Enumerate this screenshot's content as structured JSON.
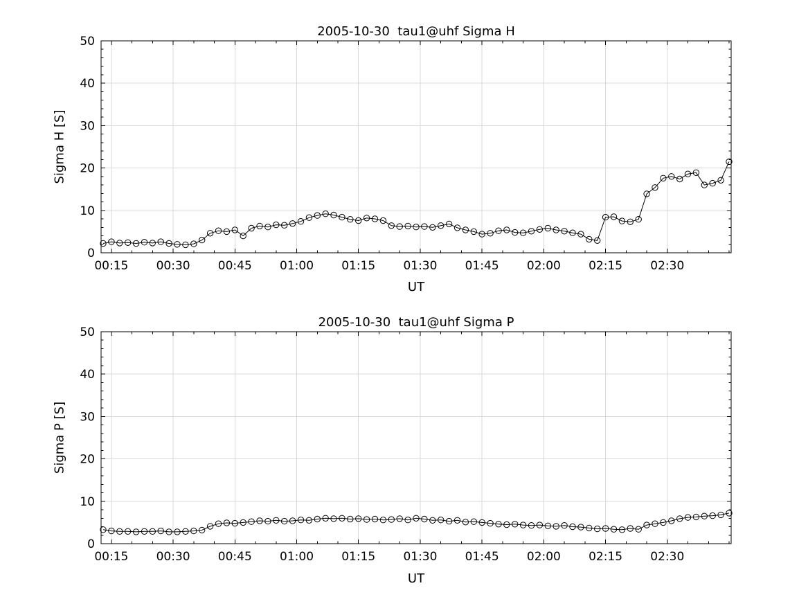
{
  "figure": {
    "background": "#ffffff",
    "axis_color": "#000000"
  },
  "chart_data": [
    {
      "type": "line",
      "title": "2005-10-30  tau1@uhf Sigma H",
      "xlabel": "UT",
      "ylabel": "Sigma H [S]",
      "marker": "circle",
      "line_color": "#000000",
      "grid": true,
      "grid_color": "#d9d9d9",
      "legend": "none",
      "ylim": [
        0,
        50
      ],
      "yticks": [
        0,
        10,
        20,
        30,
        40,
        50
      ],
      "y_minor_step": 2,
      "xlim_minutes": [
        12.5,
        165.5
      ],
      "x_minor_step_minutes": 5,
      "xticks_minutes": [
        15,
        30,
        45,
        60,
        75,
        90,
        105,
        120,
        135,
        150
      ],
      "xtick_labels": [
        "00:15",
        "00:30",
        "00:45",
        "01:00",
        "01:15",
        "01:30",
        "01:45",
        "02:00",
        "02:15",
        "02:30"
      ],
      "x_minutes": [
        13,
        15,
        17,
        19,
        21,
        23,
        25,
        27,
        29,
        31,
        33,
        35,
        37,
        39,
        41,
        43,
        45,
        47,
        49,
        51,
        53,
        55,
        57,
        59,
        61,
        63,
        65,
        67,
        69,
        71,
        73,
        75,
        77,
        79,
        81,
        83,
        85,
        87,
        89,
        91,
        93,
        95,
        97,
        99,
        101,
        103,
        105,
        107,
        109,
        111,
        113,
        115,
        117,
        119,
        121,
        123,
        125,
        127,
        129,
        131,
        133,
        135,
        137,
        139,
        141,
        143,
        145,
        147,
        149,
        151,
        153,
        155,
        157,
        159,
        161,
        163,
        165
      ],
      "y": [
        2.2,
        2.6,
        2.3,
        2.4,
        2.2,
        2.5,
        2.3,
        2.6,
        2.2,
        2.0,
        1.9,
        2.1,
        3.0,
        4.6,
        5.2,
        5.0,
        5.4,
        4.0,
        5.8,
        6.3,
        6.1,
        6.6,
        6.5,
        6.9,
        7.4,
        8.3,
        8.8,
        9.2,
        8.9,
        8.4,
        7.9,
        7.6,
        8.2,
        8.0,
        7.6,
        6.4,
        6.2,
        6.3,
        6.1,
        6.2,
        6.0,
        6.4,
        6.8,
        5.9,
        5.4,
        5.0,
        4.4,
        4.6,
        5.2,
        5.4,
        4.8,
        4.7,
        5.1,
        5.5,
        5.8,
        5.4,
        5.1,
        4.7,
        4.4,
        3.2,
        2.9,
        8.4,
        8.5,
        7.5,
        7.3,
        7.9,
        13.9,
        15.4,
        17.6,
        18.0,
        17.4,
        18.6,
        18.9,
        16.0,
        16.4,
        17.1,
        21.5
      ]
    },
    {
      "type": "line",
      "title": "2005-10-30  tau1@uhf Sigma P",
      "xlabel": "UT",
      "ylabel": "Sigma P [S]",
      "marker": "circle",
      "line_color": "#000000",
      "grid": true,
      "grid_color": "#d9d9d9",
      "legend": "none",
      "ylim": [
        0,
        50
      ],
      "yticks": [
        0,
        10,
        20,
        30,
        40,
        50
      ],
      "y_minor_step": 2,
      "xlim_minutes": [
        12.5,
        165.5
      ],
      "x_minor_step_minutes": 5,
      "xticks_minutes": [
        15,
        30,
        45,
        60,
        75,
        90,
        105,
        120,
        135,
        150
      ],
      "xtick_labels": [
        "00:15",
        "00:30",
        "00:45",
        "01:00",
        "01:15",
        "01:30",
        "01:45",
        "02:00",
        "02:15",
        "02:30"
      ],
      "x_minutes": [
        13,
        15,
        17,
        19,
        21,
        23,
        25,
        27,
        29,
        31,
        33,
        35,
        37,
        39,
        41,
        43,
        45,
        47,
        49,
        51,
        53,
        55,
        57,
        59,
        61,
        63,
        65,
        67,
        69,
        71,
        73,
        75,
        77,
        79,
        81,
        83,
        85,
        87,
        89,
        91,
        93,
        95,
        97,
        99,
        101,
        103,
        105,
        107,
        109,
        111,
        113,
        115,
        117,
        119,
        121,
        123,
        125,
        127,
        129,
        131,
        133,
        135,
        137,
        139,
        141,
        143,
        145,
        147,
        149,
        151,
        153,
        155,
        157,
        159,
        161,
        163,
        165
      ],
      "y": [
        3.3,
        3.0,
        2.9,
        2.9,
        2.8,
        2.9,
        2.9,
        3.0,
        2.8,
        2.8,
        2.9,
        3.0,
        3.2,
        4.1,
        4.7,
        4.9,
        4.8,
        5.0,
        5.2,
        5.4,
        5.3,
        5.5,
        5.3,
        5.4,
        5.6,
        5.5,
        5.8,
        6.0,
        5.9,
        6.0,
        5.8,
        5.9,
        5.7,
        5.8,
        5.6,
        5.7,
        5.9,
        5.6,
        6.0,
        5.8,
        5.5,
        5.6,
        5.3,
        5.5,
        5.1,
        5.2,
        5.0,
        4.8,
        4.6,
        4.5,
        4.6,
        4.4,
        4.3,
        4.4,
        4.2,
        4.1,
        4.3,
        4.0,
        3.9,
        3.7,
        3.5,
        3.6,
        3.4,
        3.3,
        3.6,
        3.4,
        4.4,
        4.7,
        5.0,
        5.4,
        5.9,
        6.2,
        6.3,
        6.5,
        6.6,
        6.8,
        7.2
      ]
    }
  ]
}
